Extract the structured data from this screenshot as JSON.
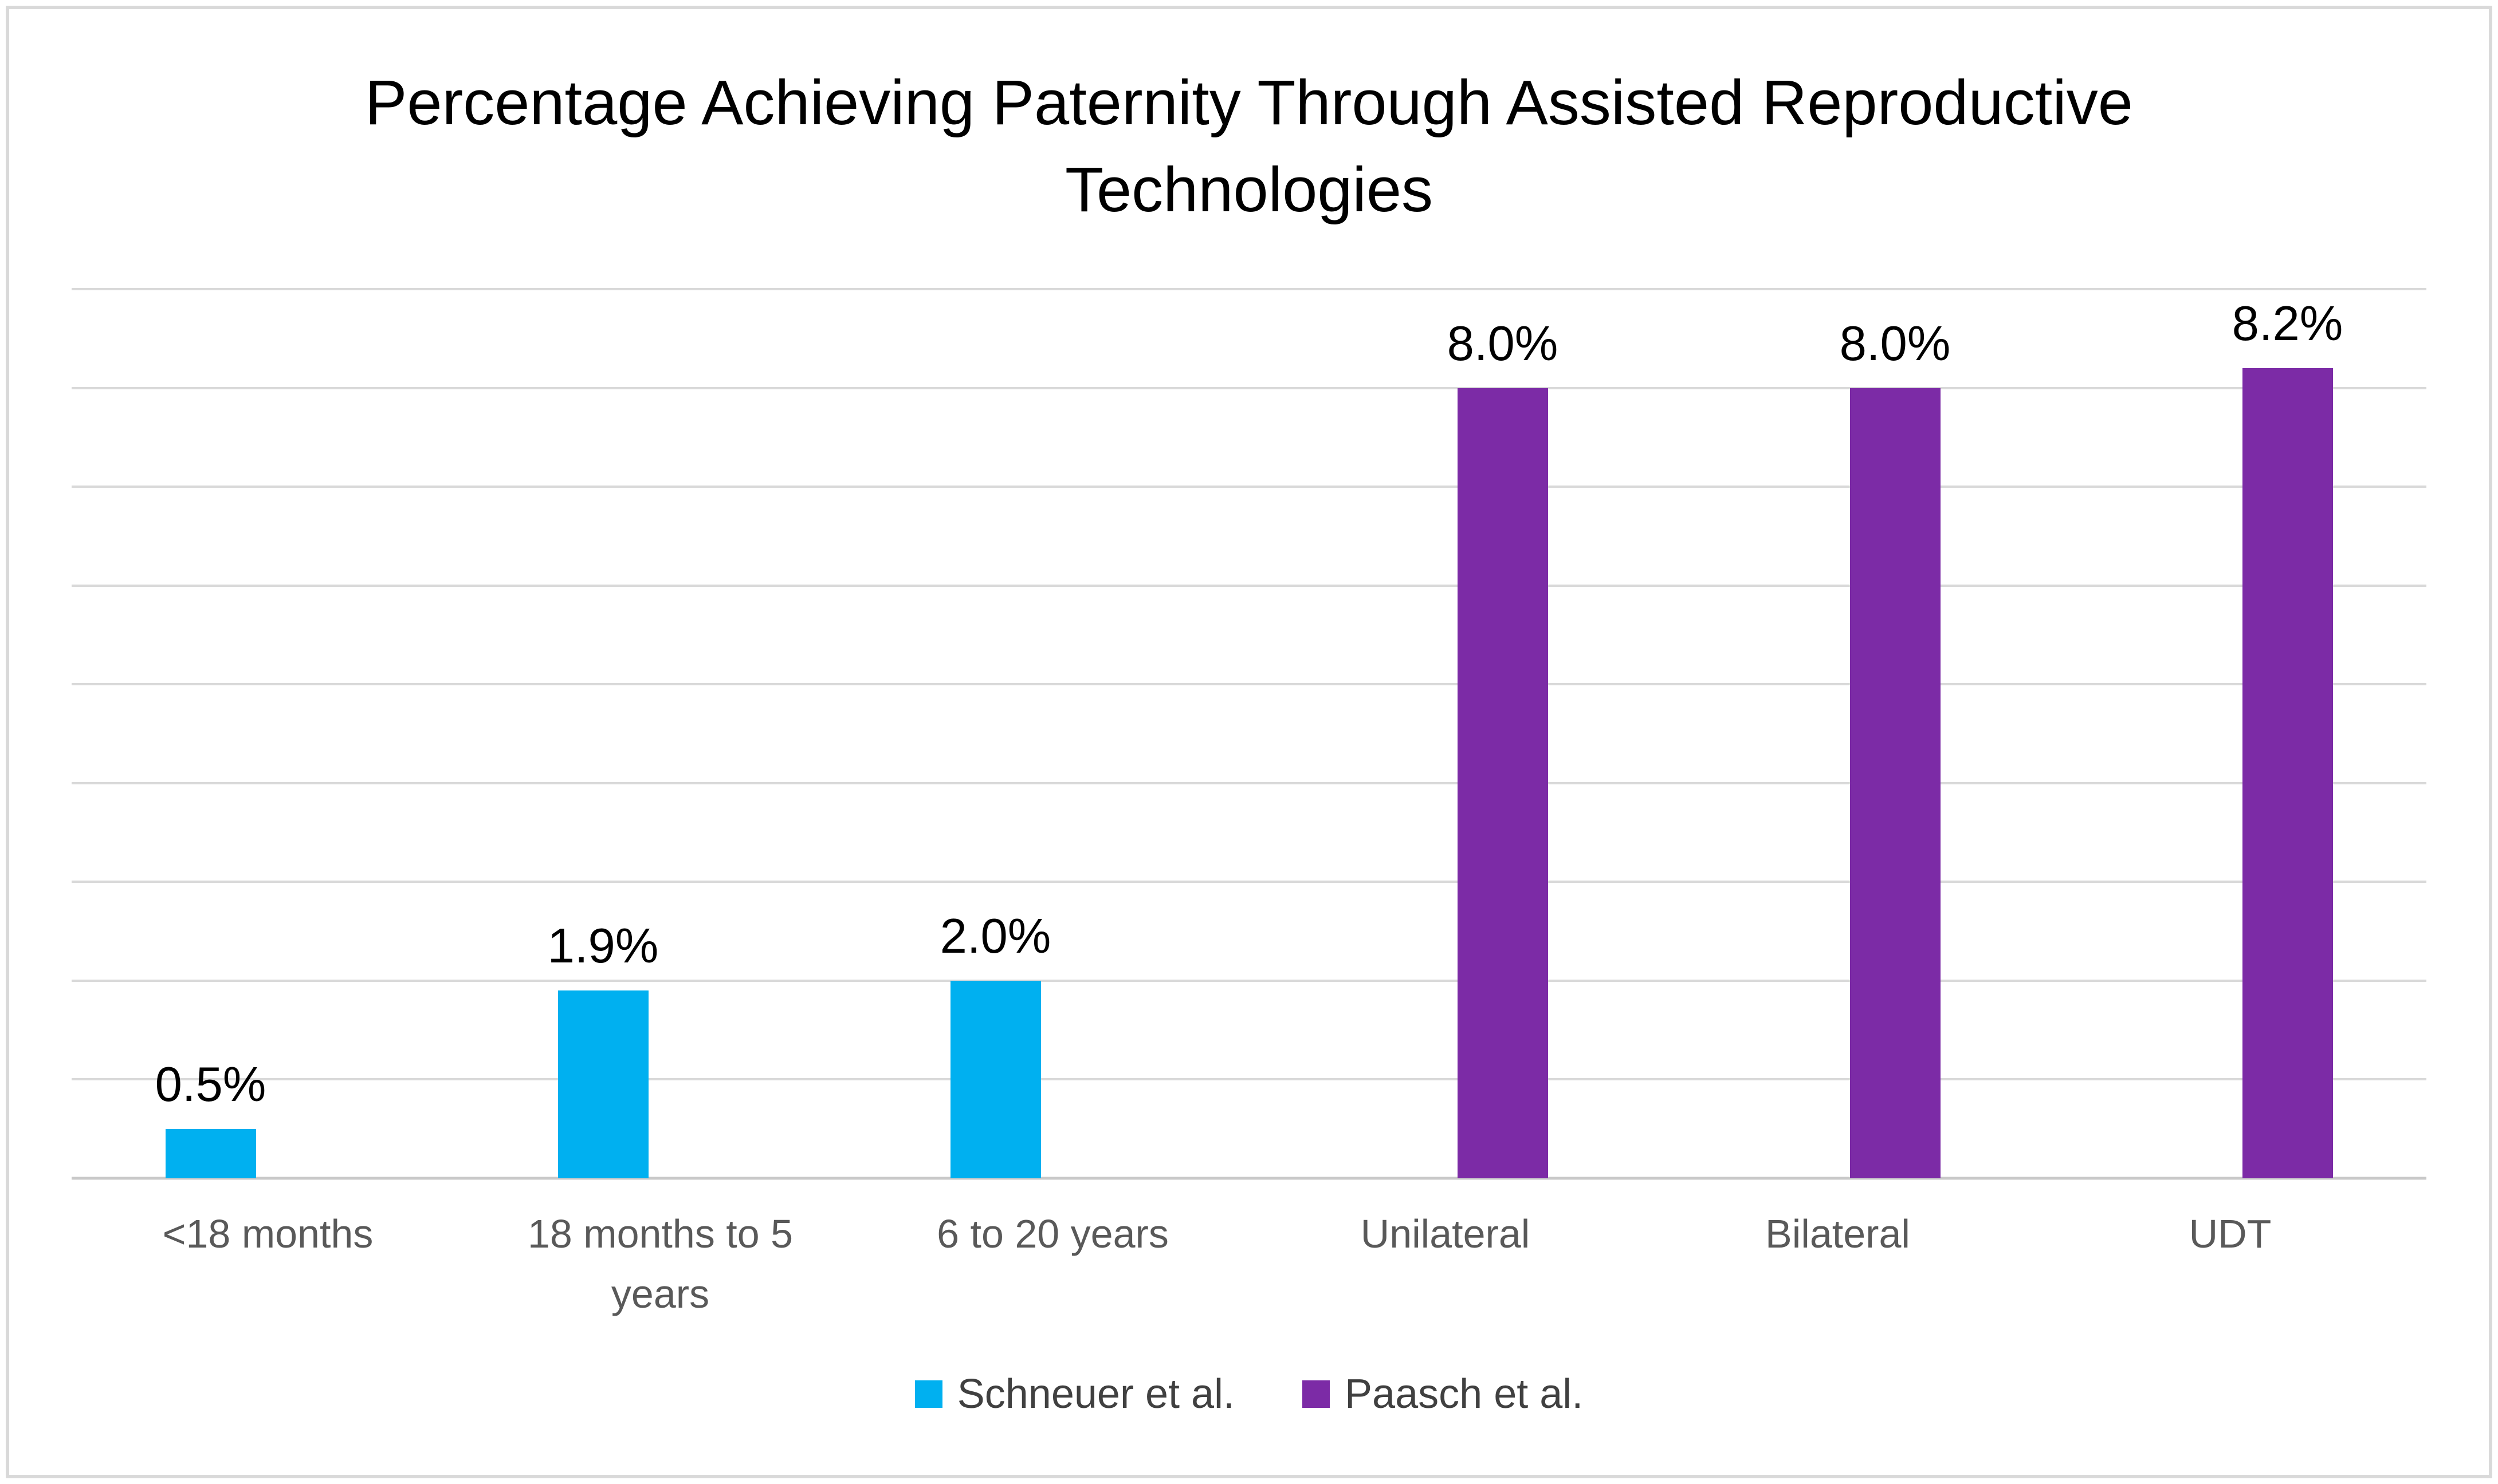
{
  "chart_data": {
    "type": "bar",
    "title": "Percentage Achieving Paternity Through Assisted Reproductive Technologies",
    "categories": [
      "<18 months",
      "18 months to 5 years",
      "6 to 20 years",
      "Unilateral",
      "Bilateral",
      "UDT"
    ],
    "series": [
      {
        "name": "Schneuer et al.",
        "color": "#00B0F0",
        "values": [
          0.5,
          1.9,
          2.0,
          null,
          null,
          null
        ],
        "labels": [
          "0.5%",
          "1.9%",
          "2.0%",
          null,
          null,
          null
        ]
      },
      {
        "name": "Paasch et al.",
        "color": "#7C2BA6",
        "values": [
          null,
          null,
          null,
          8.0,
          8.0,
          8.2
        ],
        "labels": [
          null,
          null,
          null,
          "8.0%",
          "8.0%",
          "8.2%"
        ]
      }
    ],
    "xlabel": "",
    "ylabel": "",
    "ylim": [
      0,
      9
    ],
    "gridline_interval": 1,
    "grid": "horizontal",
    "y_axis_labels_visible": false,
    "legend_position": "bottom",
    "colors": {
      "background": "#FFFFFF",
      "border": "#D9D9D9",
      "gridline": "#D9D9D9",
      "axis_line": "#C9C9C9",
      "title_text": "#000000",
      "data_label_text": "#000000",
      "axis_label_text": "#595959",
      "legend_text": "#404040"
    }
  }
}
